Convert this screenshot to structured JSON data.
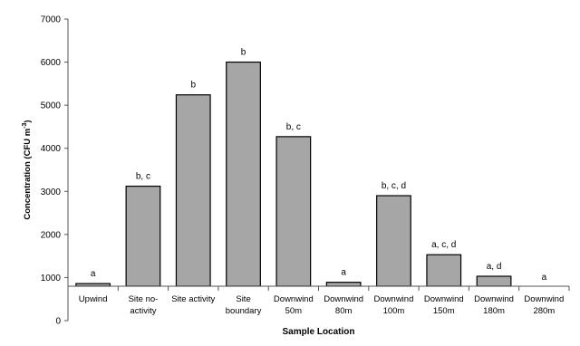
{
  "chart_data": {
    "type": "bar",
    "title": "",
    "xlabel": "Sample Location",
    "ylabel": "Concentration (CFU m",
    "ylabel_sup": "-3",
    "ylabel_end": ")",
    "ylim": [
      0,
      7000
    ],
    "yticks": [
      0,
      1000,
      2000,
      3000,
      4000,
      5000,
      6000,
      7000
    ],
    "bar_color": "#a6a6a6",
    "bar_stroke": "#000000",
    "categories": [
      [
        "Upwind"
      ],
      [
        "Site no-",
        "activity"
      ],
      [
        "Site activity"
      ],
      [
        "Site",
        "boundary"
      ],
      [
        "Downwind",
        "50m"
      ],
      [
        "Downwind",
        "80m"
      ],
      [
        "Downwind",
        "100m"
      ],
      [
        "Downwind",
        "150m"
      ],
      [
        "Downwind",
        "180m"
      ],
      [
        "Downwind",
        "280m"
      ]
    ],
    "values": [
      860,
      3120,
      5240,
      6000,
      4270,
      890,
      2900,
      1530,
      1030,
      780
    ],
    "annotations": [
      "a",
      "b, c",
      "b",
      "b",
      "b, c",
      "a",
      "b, c, d",
      "a, c, d",
      "a, d",
      "a"
    ]
  }
}
